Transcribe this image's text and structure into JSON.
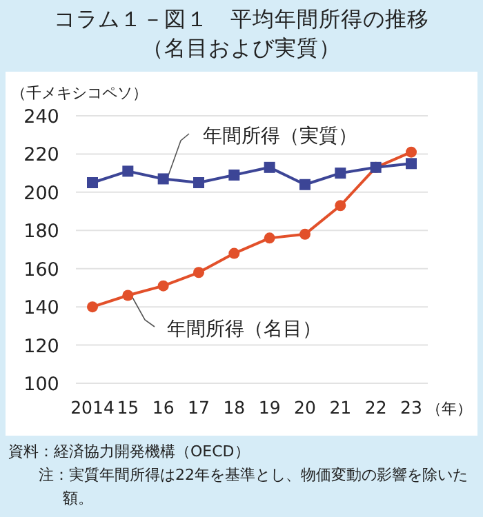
{
  "chart_data": {
    "type": "line",
    "title": "コラム１－図１　平均年間所得の推移",
    "subtitle": "（名目および実質）",
    "ylabel": "（千メキシコペソ）",
    "xlabel": "（年）",
    "categories": [
      "2014",
      "15",
      "16",
      "17",
      "18",
      "19",
      "20",
      "21",
      "22",
      "23"
    ],
    "series": [
      {
        "name": "年間所得（実質）",
        "color": "#3c4596",
        "marker": "square",
        "values": [
          205,
          211,
          207,
          205,
          209,
          213,
          204,
          210,
          213,
          215
        ]
      },
      {
        "name": "年間所得（名目）",
        "color": "#e2502a",
        "marker": "circle",
        "values": [
          140,
          146,
          151,
          158,
          168,
          176,
          178,
          193,
          213,
          221
        ]
      }
    ],
    "ylim": [
      100,
      240
    ],
    "yticks": [
      100,
      120,
      140,
      160,
      180,
      200,
      220,
      240
    ],
    "grid": "y",
    "annotations": [
      "資料：経済協力開発機構（OECD）",
      "注：実質年間所得は22年を基準とし、物価変動の影響を除いた額。"
    ]
  }
}
